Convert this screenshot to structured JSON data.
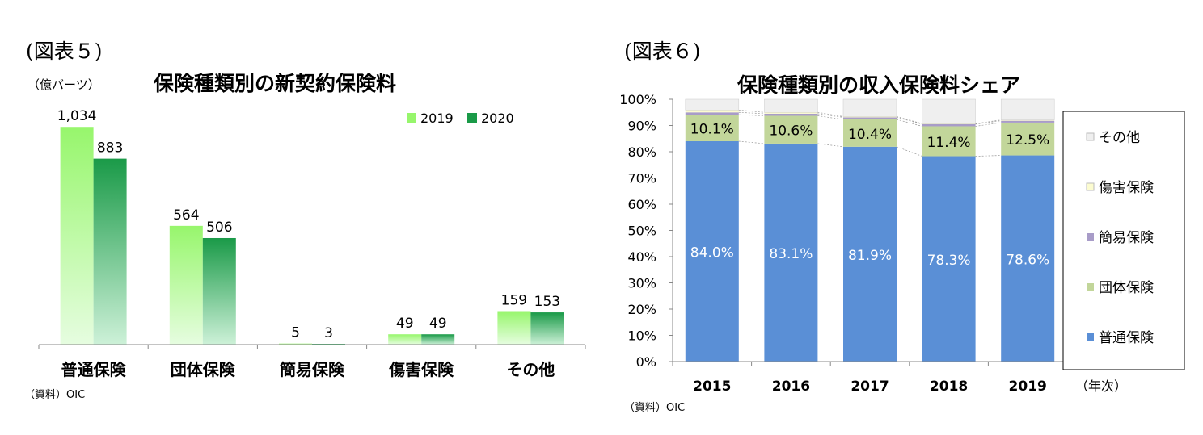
{
  "colors": {
    "c2019_top": "#97f66c",
    "c2019_bottom": "#e6fde0",
    "c2020_top": "#1a9a48",
    "c2020_bottom": "#cdf1d8",
    "futsu": "#5a8fd6",
    "dantai": "#c2d69a",
    "kanni": "#a89cc8",
    "shougai": "#fcfcd0",
    "sonota": "#efefef"
  },
  "left": {
    "fig_label": "(図表５)",
    "unit": "（億バーツ）",
    "title": "保険種類別の新契約保険料",
    "source": "（資料）OIC",
    "chart_data": {
      "type": "bar",
      "categories": [
        "普通保険",
        "団体保険",
        "簡易保険",
        "傷害保険",
        "その他"
      ],
      "series": [
        {
          "name": "2019",
          "values": [
            1034,
            564,
            5,
            49,
            159
          ],
          "labels": [
            "1,034",
            "564",
            "5",
            "49",
            "159"
          ]
        },
        {
          "name": "2020",
          "values": [
            883,
            506,
            3,
            49,
            153
          ],
          "labels": [
            "883",
            "506",
            "3",
            "49",
            "153"
          ]
        }
      ],
      "ylim": [
        0,
        1100
      ],
      "legend": "top-right"
    }
  },
  "right": {
    "fig_label": "(図表６)",
    "title": "保険種類別の収入保険料シェア",
    "xunit": "（年次）",
    "source": "（資料）OIC",
    "chart_data": {
      "type": "bar",
      "stacked": true,
      "categories": [
        "2015",
        "2016",
        "2017",
        "2018",
        "2019"
      ],
      "yticks": [
        "0%",
        "10%",
        "20%",
        "30%",
        "40%",
        "50%",
        "60%",
        "70%",
        "80%",
        "90%",
        "100%"
      ],
      "ylim": [
        0,
        100
      ],
      "series": [
        {
          "name": "普通保険",
          "values": [
            84.0,
            83.1,
            81.9,
            78.3,
            78.6
          ],
          "labels": [
            "84.0%",
            "83.1%",
            "81.9%",
            "78.3%",
            "78.6%"
          ]
        },
        {
          "name": "団体保険",
          "values": [
            10.1,
            10.6,
            10.4,
            11.4,
            12.5
          ],
          "labels": [
            "10.1%",
            "10.6%",
            "10.4%",
            "11.4%",
            "12.5%"
          ]
        },
        {
          "name": "簡易保険",
          "values": [
            0.9,
            0.8,
            0.8,
            0.8,
            0.7
          ]
        },
        {
          "name": "傷害保険",
          "values": [
            0.9,
            0.5,
            0.3,
            0.2,
            0.3
          ]
        },
        {
          "name": "その他",
          "values": [
            4.1,
            5.0,
            6.6,
            9.3,
            7.9
          ]
        }
      ],
      "legend": "right"
    }
  }
}
